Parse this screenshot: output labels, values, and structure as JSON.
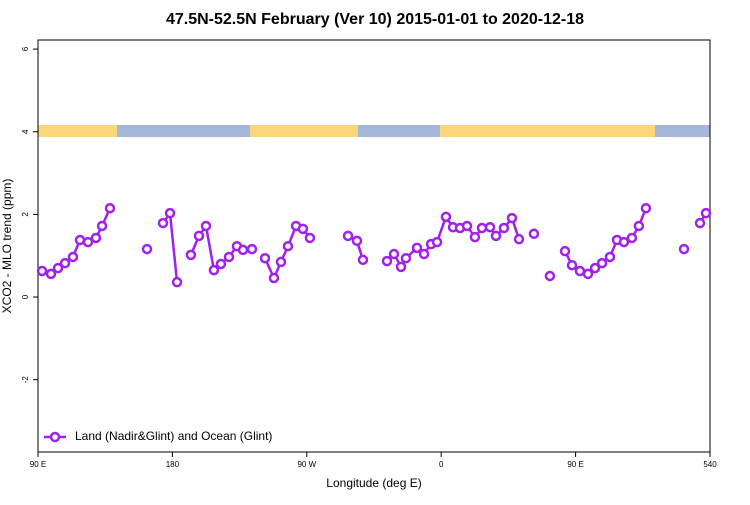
{
  "chart_data": {
    "type": "line",
    "title": "47.5N-52.5N February (Ver 10)   2015-01-01 to 2020-12-18",
    "x_label": "Longitude (deg E)",
    "y_label": "XCO2 - MLO trend (ppm)",
    "xlim": [
      90,
      540
    ],
    "xticks": [
      {
        "value": 90,
        "label": "90 E"
      },
      180,
      {
        "value": 270,
        "label": "90 W"
      },
      {
        "value": 360,
        "label": "0"
      },
      {
        "value": 450,
        "label": "90 E"
      },
      540
    ],
    "ylim": [
      -3.75,
      6.22
    ],
    "yticks": [
      -2,
      0,
      2,
      4,
      6
    ],
    "legend": "lower left",
    "series": [
      {
        "name": "Land (Nadir&Glint) and Ocean (Glint)",
        "color": "#a020f0",
        "x": [
          92.7,
          98.7,
          103.4,
          108.1,
          113.4,
          118.1,
          123.5,
          128.8,
          132.9,
          138.2,
          null,
          163.0,
          null,
          173.7,
          178.4,
          183.1,
          null,
          192.4,
          197.8,
          202.5,
          207.8,
          212.5,
          217.9,
          223.2,
          227.3,
          233.3,
          null,
          242.0,
          248.0,
          252.7,
          257.4,
          262.8,
          267.4,
          272.1,
          null,
          297.6,
          303.6,
          307.6,
          null,
          323.7,
          328.4,
          333.1,
          336.4,
          343.8,
          348.5,
          353.2,
          357.2,
          363.2,
          367.9,
          372.6,
          377.3,
          382.6,
          387.3,
          392.7,
          396.7,
          402.0,
          407.4,
          412.1,
          null,
          422.1,
          null,
          432.8,
          null,
          442.9,
          447.6,
          452.9,
          458.3,
          463.0,
          467.7,
          473.0,
          477.7,
          482.4,
          487.7,
          492.4,
          497.1,
          null,
          522.6,
          null,
          533.3,
          537.3
        ],
        "values": [
          0.63,
          0.56,
          0.7,
          0.82,
          0.97,
          1.38,
          1.33,
          1.43,
          1.72,
          2.15,
          null,
          1.16,
          null,
          1.79,
          2.03,
          0.36,
          null,
          1.02,
          1.48,
          1.72,
          0.65,
          0.8,
          0.97,
          1.23,
          1.14,
          1.16,
          null,
          0.94,
          0.46,
          0.85,
          1.23,
          1.72,
          1.65,
          1.43,
          null,
          1.48,
          1.36,
          0.9,
          null,
          0.87,
          1.04,
          0.73,
          0.94,
          1.19,
          1.04,
          1.28,
          1.33,
          1.94,
          1.69,
          1.67,
          1.72,
          1.45,
          1.67,
          1.69,
          1.48,
          1.67,
          1.91,
          1.4,
          null,
          1.53,
          null,
          0.51,
          null,
          1.11,
          0.77,
          0.63,
          0.56,
          0.7,
          0.82,
          0.97,
          1.38,
          1.33,
          1.43,
          1.72,
          2.15,
          null,
          1.16,
          null,
          1.79,
          2.03
        ]
      }
    ]
  }
}
